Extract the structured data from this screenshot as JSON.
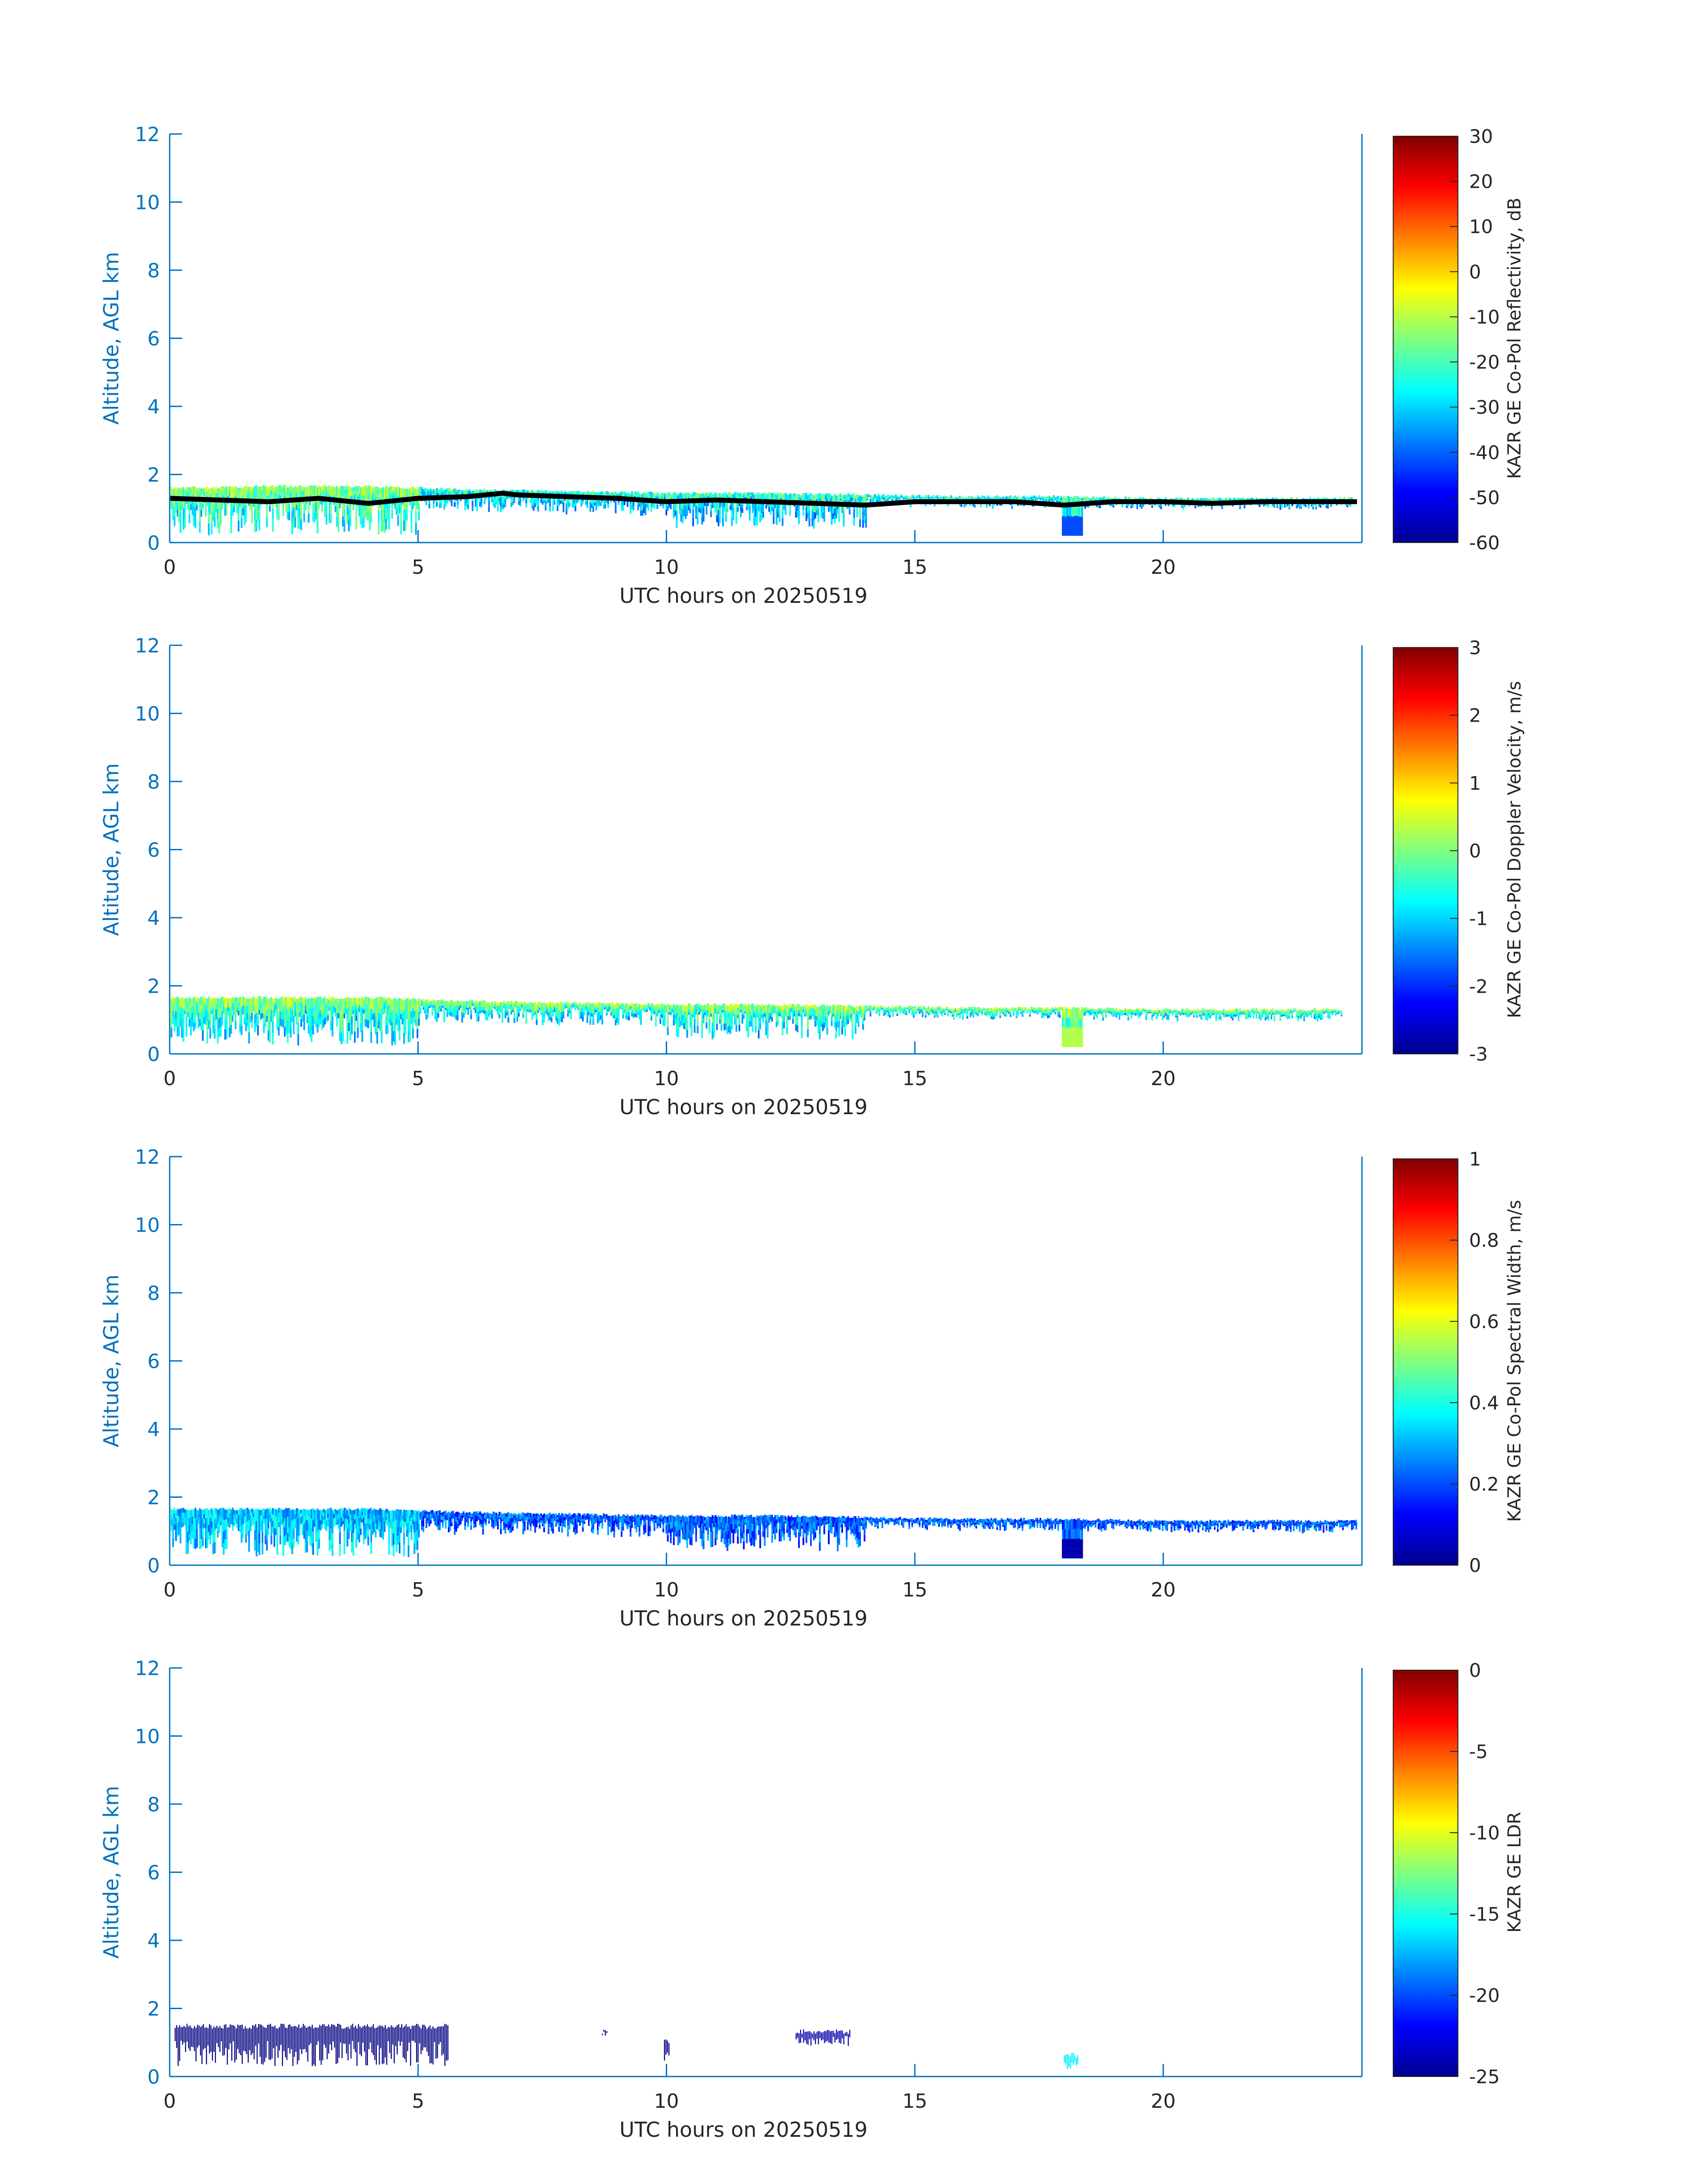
{
  "figure": {
    "panels": [
      {
        "colorbar": {
          "label": "KAZR GE Co-Pol Reflectivity, dB",
          "ticks": [
            "30",
            "20",
            "10",
            "0",
            "-10",
            "-20",
            "-30",
            "-40",
            "-50",
            "-60"
          ],
          "range": [
            -60,
            30
          ]
        },
        "has_line": true
      },
      {
        "colorbar": {
          "label": "KAZR GE Co-Pol Doppler Velocity, m/s",
          "ticks": [
            "3",
            "2",
            "1",
            "0",
            "-1",
            "-2",
            "-3"
          ],
          "range": [
            -3,
            3
          ]
        },
        "has_line": false
      },
      {
        "colorbar": {
          "label": "KAZR GE Co-Pol Spectral Width, m/s",
          "ticks": [
            "1",
            "0.8",
            "0.6",
            "0.4",
            "0.2",
            "0"
          ],
          "range": [
            0,
            1
          ]
        },
        "has_line": false
      },
      {
        "colorbar": {
          "label": "KAZR GE LDR",
          "ticks": [
            "0",
            "-5",
            "-10",
            "-15",
            "-20",
            "-25"
          ],
          "range": [
            -25,
            0
          ]
        },
        "has_line": false
      }
    ],
    "axis_color": "#0072bd",
    "colormap": "jet"
  },
  "chart_data": [
    {
      "type": "heatmap",
      "title": "",
      "xlabel": "UTC hours on 20250519",
      "ylabel": "Altitude, AGL km",
      "xlim": [
        0,
        24
      ],
      "ylim": [
        0,
        12
      ],
      "xticks": [
        "0",
        "5",
        "10",
        "15",
        "20"
      ],
      "yticks": [
        "0",
        "2",
        "4",
        "6",
        "8",
        "10",
        "12"
      ],
      "z_label": "KAZR GE Co-Pol Reflectivity, dB",
      "z_range": [
        -60,
        30
      ],
      "cloud_top_km": [
        [
          0,
          1.6
        ],
        [
          2,
          1.65
        ],
        [
          4,
          1.65
        ],
        [
          6,
          1.55
        ],
        [
          8,
          1.5
        ],
        [
          10,
          1.45
        ],
        [
          12,
          1.45
        ],
        [
          14,
          1.4
        ],
        [
          16,
          1.35
        ],
        [
          18,
          1.35
        ],
        [
          20,
          1.3
        ],
        [
          22,
          1.3
        ],
        [
          23.8,
          1.3
        ]
      ],
      "cloud_base_line_km": [
        [
          0,
          1.3
        ],
        [
          1,
          1.25
        ],
        [
          2,
          1.2
        ],
        [
          3,
          1.3
        ],
        [
          4,
          1.15
        ],
        [
          5,
          1.3
        ],
        [
          6,
          1.35
        ],
        [
          6.7,
          1.45
        ],
        [
          7,
          1.4
        ],
        [
          8,
          1.35
        ],
        [
          9,
          1.3
        ],
        [
          10,
          1.2
        ],
        [
          11,
          1.25
        ],
        [
          12,
          1.2
        ],
        [
          13,
          1.15
        ],
        [
          14,
          1.1
        ],
        [
          15,
          1.2
        ],
        [
          16,
          1.2
        ],
        [
          17,
          1.2
        ],
        [
          18,
          1.1
        ],
        [
          19,
          1.2
        ],
        [
          20,
          1.2
        ],
        [
          21,
          1.15
        ],
        [
          22,
          1.2
        ],
        [
          23.9,
          1.2
        ]
      ]
    },
    {
      "type": "heatmap",
      "title": "",
      "xlabel": "UTC hours on 20250519",
      "ylabel": "Altitude, AGL km",
      "xlim": [
        0,
        24
      ],
      "ylim": [
        0,
        12
      ],
      "xticks": [
        "0",
        "5",
        "10",
        "15",
        "20"
      ],
      "yticks": [
        "0",
        "2",
        "4",
        "6",
        "8",
        "10",
        "12"
      ],
      "z_label": "KAZR GE Co-Pol Doppler Velocity, m/s",
      "z_range": [
        -3,
        3
      ],
      "cloud_top_km": [
        [
          0,
          1.65
        ],
        [
          2,
          1.65
        ],
        [
          4,
          1.65
        ],
        [
          6,
          1.55
        ],
        [
          8,
          1.5
        ],
        [
          10,
          1.45
        ],
        [
          12,
          1.45
        ],
        [
          14,
          1.4
        ],
        [
          16,
          1.35
        ],
        [
          18,
          1.35
        ],
        [
          20,
          1.3
        ],
        [
          22,
          1.3
        ],
        [
          23.6,
          1.3
        ]
      ]
    },
    {
      "type": "heatmap",
      "title": "",
      "xlabel": "UTC hours on 20250519",
      "ylabel": "Altitude, AGL km",
      "xlim": [
        0,
        24
      ],
      "ylim": [
        0,
        12
      ],
      "xticks": [
        "0",
        "5",
        "10",
        "15",
        "20"
      ],
      "yticks": [
        "0",
        "2",
        "4",
        "6",
        "8",
        "10",
        "12"
      ],
      "z_label": "KAZR GE Co-Pol Spectral Width, m/s",
      "z_range": [
        0,
        1
      ],
      "cloud_top_km": [
        [
          0,
          1.65
        ],
        [
          2,
          1.65
        ],
        [
          4,
          1.65
        ],
        [
          6,
          1.55
        ],
        [
          8,
          1.5
        ],
        [
          10,
          1.45
        ],
        [
          12,
          1.45
        ],
        [
          14,
          1.4
        ],
        [
          16,
          1.35
        ],
        [
          18,
          1.35
        ],
        [
          20,
          1.3
        ],
        [
          22,
          1.3
        ],
        [
          23.9,
          1.3
        ]
      ]
    },
    {
      "type": "heatmap",
      "title": "",
      "xlabel": "UTC hours on 20250519",
      "ylabel": "Altitude, AGL km",
      "xlim": [
        0,
        24
      ],
      "ylim": [
        0,
        12
      ],
      "xticks": [
        "0",
        "5",
        "10",
        "15",
        "20"
      ],
      "yticks": [
        "0",
        "2",
        "4",
        "6",
        "8",
        "10",
        "12"
      ],
      "z_label": "KAZR GE LDR",
      "z_range": [
        -25,
        0
      ],
      "features": [
        {
          "t_start": 0.1,
          "t_end": 5.6,
          "z_low_km": 0.3,
          "z_high_km": 1.55,
          "value": -25
        },
        {
          "t_start": 8.7,
          "t_end": 8.8,
          "z_low_km": 1.2,
          "z_high_km": 1.4,
          "value": -25
        },
        {
          "t_start": 9.95,
          "t_end": 10.05,
          "z_low_km": 0.4,
          "z_high_km": 1.1,
          "value": -25
        },
        {
          "t_start": 12.6,
          "t_end": 13.7,
          "z_low_km": 0.9,
          "z_high_km": 1.4,
          "value": -24
        },
        {
          "t_start": 18.0,
          "t_end": 18.3,
          "z_low_km": 0.2,
          "z_high_km": 0.7,
          "value": -16
        }
      ]
    }
  ]
}
